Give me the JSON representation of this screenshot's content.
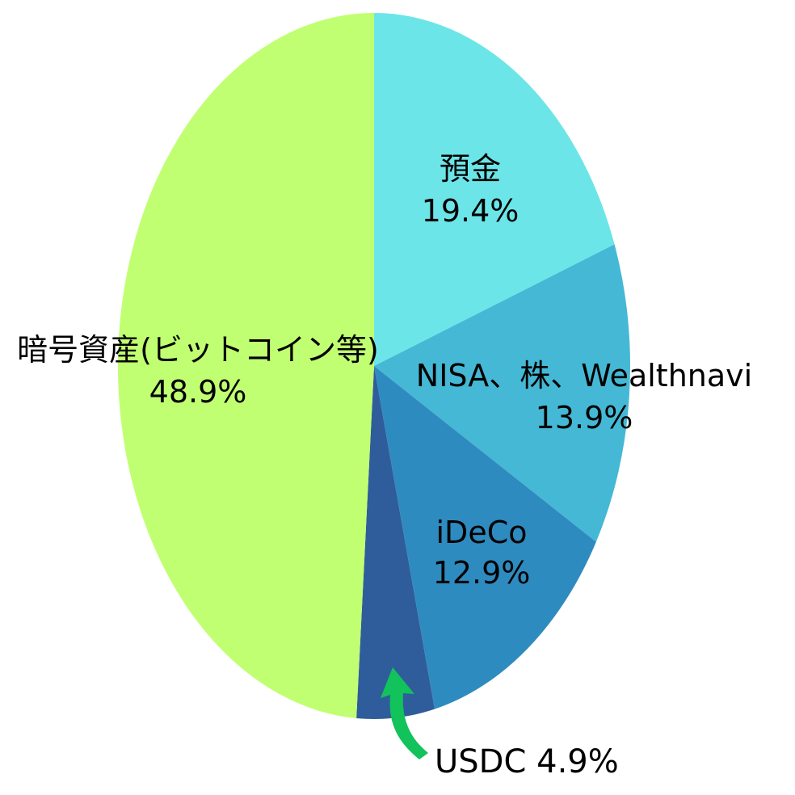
{
  "chart_data": {
    "type": "pie",
    "start_angle_deg": 0,
    "direction": "clockwise",
    "slices": [
      {
        "label": "預金",
        "value": 19.4,
        "percent_label": "19.4%",
        "color": "#6ce5e8"
      },
      {
        "label": "NISA、株、Wealthnavi",
        "value": 13.9,
        "percent_label": "13.9%",
        "color": "#45b8d5"
      },
      {
        "label": "iDeCo",
        "value": 12.9,
        "percent_label": "12.9%",
        "color": "#2e8bbf"
      },
      {
        "label": "USDC",
        "value": 4.9,
        "percent_label": "4.9%",
        "color": "#2f5d9b"
      },
      {
        "label": "暗号資産(ビットコイン等)",
        "value": 48.9,
        "percent_label": "48.9%",
        "color": "#c1ff72"
      }
    ],
    "callout": {
      "text": "USDC 4.9%",
      "arrow_color": "#12c25a"
    }
  }
}
